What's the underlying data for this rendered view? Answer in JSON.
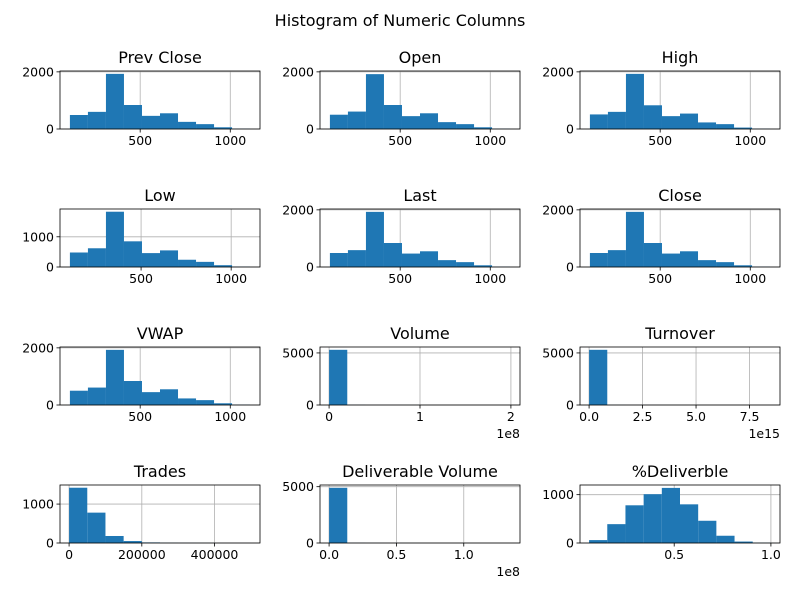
{
  "figure": {
    "title": "Histogram of Numeric Columns"
  },
  "colors": {
    "bar": "#1f77b4",
    "grid": "#b0b0b0",
    "axis": "#000000"
  },
  "chart_data": [
    {
      "type": "bar",
      "title": "Prev Close",
      "grid": true,
      "bin_edges": [
        110,
        210,
        310,
        410,
        510,
        610,
        710,
        810,
        910,
        1010,
        1110
      ],
      "values": [
        490,
        600,
        1930,
        840,
        460,
        550,
        250,
        170,
        60,
        10
      ],
      "xlim": [
        55,
        1165
      ],
      "ylim": [
        0,
        2030
      ],
      "xticks": [
        500,
        1000
      ],
      "xtick_labels": [
        "500",
        "1000"
      ],
      "yticks": [
        0,
        2000
      ],
      "ytick_labels": [
        "0",
        "2000"
      ],
      "offset_label": ""
    },
    {
      "type": "bar",
      "title": "Open",
      "grid": true,
      "bin_edges": [
        110,
        210,
        310,
        410,
        510,
        610,
        710,
        810,
        910,
        1010,
        1110
      ],
      "values": [
        500,
        610,
        1920,
        840,
        450,
        550,
        240,
        170,
        60,
        10
      ],
      "xlim": [
        55,
        1165
      ],
      "ylim": [
        0,
        2030
      ],
      "xticks": [
        500,
        1000
      ],
      "xtick_labels": [
        "500",
        "1000"
      ],
      "yticks": [
        0,
        2000
      ],
      "ytick_labels": [
        "0",
        "2000"
      ],
      "offset_label": ""
    },
    {
      "type": "bar",
      "title": "High",
      "grid": true,
      "bin_edges": [
        110,
        210,
        310,
        410,
        510,
        610,
        710,
        810,
        910,
        1010,
        1110
      ],
      "values": [
        510,
        600,
        1930,
        830,
        450,
        540,
        230,
        170,
        50,
        10
      ],
      "xlim": [
        55,
        1165
      ],
      "ylim": [
        0,
        2030
      ],
      "xticks": [
        500,
        1000
      ],
      "xtick_labels": [
        "500",
        "1000"
      ],
      "yticks": [
        0,
        2000
      ],
      "ytick_labels": [
        "0",
        "2000"
      ],
      "offset_label": ""
    },
    {
      "type": "bar",
      "title": "Low",
      "grid": true,
      "bin_edges": [
        105,
        205,
        305,
        405,
        505,
        605,
        705,
        805,
        905,
        1005,
        1105
      ],
      "values": [
        480,
        620,
        1830,
        850,
        460,
        550,
        240,
        170,
        60,
        10
      ],
      "xlim": [
        50,
        1160
      ],
      "ylim": [
        0,
        1920
      ],
      "xticks": [
        500,
        1000
      ],
      "xtick_labels": [
        "500",
        "1000"
      ],
      "yticks": [
        0,
        1000
      ],
      "ytick_labels": [
        "0",
        "1000"
      ],
      "offset_label": ""
    },
    {
      "type": "bar",
      "title": "Last",
      "grid": true,
      "bin_edges": [
        110,
        210,
        310,
        410,
        510,
        610,
        710,
        810,
        910,
        1010,
        1110
      ],
      "values": [
        490,
        590,
        1930,
        840,
        470,
        550,
        240,
        170,
        60,
        10
      ],
      "xlim": [
        55,
        1165
      ],
      "ylim": [
        0,
        2030
      ],
      "xticks": [
        500,
        1000
      ],
      "xtick_labels": [
        "500",
        "1000"
      ],
      "yticks": [
        0,
        2000
      ],
      "ytick_labels": [
        "0",
        "2000"
      ],
      "offset_label": ""
    },
    {
      "type": "bar",
      "title": "Close",
      "grid": true,
      "bin_edges": [
        110,
        210,
        310,
        410,
        510,
        610,
        710,
        810,
        910,
        1010,
        1110
      ],
      "values": [
        490,
        590,
        1930,
        840,
        470,
        550,
        240,
        170,
        60,
        10
      ],
      "xlim": [
        55,
        1165
      ],
      "ylim": [
        0,
        2030
      ],
      "xticks": [
        500,
        1000
      ],
      "xtick_labels": [
        "500",
        "1000"
      ],
      "yticks": [
        0,
        2000
      ],
      "ytick_labels": [
        "0",
        "2000"
      ],
      "offset_label": ""
    },
    {
      "type": "bar",
      "title": "VWAP",
      "grid": true,
      "bin_edges": [
        110,
        210,
        310,
        410,
        510,
        610,
        710,
        810,
        910,
        1010,
        1110
      ],
      "values": [
        500,
        610,
        1930,
        840,
        450,
        550,
        230,
        170,
        60,
        10
      ],
      "xlim": [
        55,
        1165
      ],
      "ylim": [
        0,
        2030
      ],
      "xticks": [
        500,
        1000
      ],
      "xtick_labels": [
        "500",
        "1000"
      ],
      "yticks": [
        0,
        2000
      ],
      "ytick_labels": [
        "0",
        "2000"
      ],
      "offset_label": ""
    },
    {
      "type": "bar",
      "title": "Volume",
      "grid": true,
      "bin_edges": [
        0,
        2000,
        4000,
        6000,
        8000,
        10000,
        12000,
        14000,
        16000,
        18000,
        20000
      ],
      "values": [
        5300,
        15,
        5,
        3,
        2,
        1,
        1,
        0,
        0,
        1
      ],
      "xlim": [
        -1000,
        21000
      ],
      "ylim": [
        0,
        5570
      ],
      "xticks": [
        0,
        10000,
        20000
      ],
      "xtick_labels": [
        "0",
        "1",
        "2"
      ],
      "yticks": [
        0,
        5000
      ],
      "ytick_labels": [
        "0",
        "5000"
      ],
      "offset_label": "1e8"
    },
    {
      "type": "bar",
      "title": "Turnover",
      "grid": true,
      "bin_edges": [
        0,
        0.85,
        1.7,
        2.55,
        3.4,
        4.25,
        5.1,
        5.95,
        6.8,
        7.65,
        8.5
      ],
      "values": [
        5300,
        10,
        5,
        3,
        2,
        1,
        1,
        0,
        0,
        1
      ],
      "xlim": [
        -0.425,
        8.925
      ],
      "ylim": [
        0,
        5570
      ],
      "xticks": [
        0,
        2.5,
        5,
        7.5
      ],
      "xtick_labels": [
        "0.0",
        "2.5",
        "5.0",
        "7.5"
      ],
      "yticks": [
        0,
        5000
      ],
      "ytick_labels": [
        "0",
        "5000"
      ],
      "offset_label": "1e15"
    },
    {
      "type": "bar",
      "title": "Trades",
      "grid": true,
      "bin_edges": [
        0,
        50000,
        100000,
        150000,
        200000,
        250000,
        300000,
        350000,
        400000,
        450000,
        500000
      ],
      "values": [
        1420,
        780,
        180,
        50,
        15,
        5,
        3,
        2,
        1,
        1
      ],
      "xlim": [
        -25000,
        525000
      ],
      "ylim": [
        0,
        1490
      ],
      "xticks": [
        0,
        200000,
        400000
      ],
      "xtick_labels": [
        "0",
        "200000",
        "400000"
      ],
      "yticks": [
        0,
        1000
      ],
      "ytick_labels": [
        "0",
        "1000"
      ],
      "offset_label": ""
    },
    {
      "type": "bar",
      "title": "Deliverable Volume",
      "grid": true,
      "bin_edges": [
        0,
        1350,
        2700,
        4050,
        5400,
        6750,
        8100,
        9450,
        10800,
        12150,
        13500
      ],
      "values": [
        4900,
        15,
        5,
        3,
        2,
        1,
        1,
        0,
        0,
        1
      ],
      "xlim": [
        -675,
        14175
      ],
      "ylim": [
        0,
        5150
      ],
      "xticks": [
        0,
        5000,
        10000
      ],
      "xtick_labels": [
        "0.0",
        "0.5",
        "1.0"
      ],
      "yticks": [
        0,
        5000
      ],
      "ytick_labels": [
        "0",
        "5000"
      ],
      "offset_label": "1e8"
    },
    {
      "type": "bar",
      "title": "%Deliverble",
      "grid": true,
      "bin_edges": [
        0.06,
        0.154,
        0.248,
        0.342,
        0.436,
        0.53,
        0.624,
        0.718,
        0.812,
        0.906,
        1.0
      ],
      "values": [
        60,
        390,
        780,
        1010,
        1140,
        800,
        460,
        150,
        30,
        5
      ],
      "xlim": [
        0.013,
        1.047
      ],
      "ylim": [
        0,
        1200
      ],
      "xticks": [
        0.5,
        1.0
      ],
      "xtick_labels": [
        "0.5",
        "1.0"
      ],
      "yticks": [
        0,
        1000
      ],
      "ytick_labels": [
        "0",
        "1000"
      ],
      "offset_label": ""
    }
  ]
}
